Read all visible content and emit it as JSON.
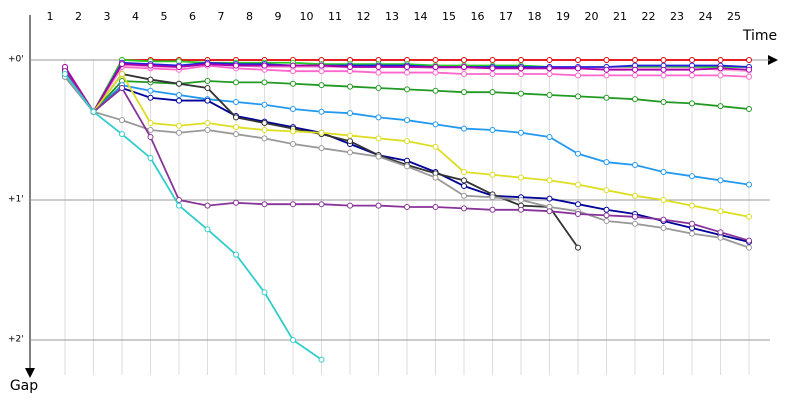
{
  "chart_data": {
    "type": "line",
    "x_label": "Time",
    "y_label": "Gap",
    "categories": [
      "1",
      "2",
      "3",
      "4",
      "5",
      "6",
      "7",
      "8",
      "9",
      "10",
      "11",
      "12",
      "13",
      "14",
      "15",
      "16",
      "17",
      "18",
      "19",
      "20",
      "21",
      "22",
      "23",
      "24",
      "25"
    ],
    "ylim": [
      -0.214,
      2.357
    ],
    "yticks": [
      {
        "value": 0,
        "label": "+0'"
      },
      {
        "value": 1,
        "label": "+1'"
      },
      {
        "value": 2,
        "label": "+2'"
      }
    ],
    "grid": true,
    "series": [
      {
        "color": "#e00000",
        "values": [
          0.05,
          0.37,
          0.0,
          0.0,
          0.0,
          0.0,
          0.0,
          0.0,
          0.0,
          0.0,
          0.0,
          0.0,
          0.0,
          0.0,
          0.0,
          0.0,
          0.0,
          0.0,
          0.0,
          0.0,
          0.0,
          0.0,
          0.0,
          0.0,
          0.0
        ]
      },
      {
        "color": "#22cc22",
        "values": [
          0.08,
          0.37,
          0.0,
          0.01,
          0.01,
          0.02,
          0.02,
          0.02,
          0.02,
          0.03,
          0.03,
          0.03,
          0.03,
          0.04,
          0.04,
          0.04,
          0.04,
          0.05,
          0.06,
          0.05,
          0.05,
          0.05,
          0.05,
          0.05,
          0.05
        ]
      },
      {
        "color": "#ff66cc",
        "values": [
          0.06,
          0.37,
          0.05,
          0.06,
          0.07,
          0.04,
          0.06,
          0.07,
          0.08,
          0.08,
          0.08,
          0.09,
          0.09,
          0.09,
          0.1,
          0.1,
          0.1,
          0.1,
          0.11,
          0.11,
          0.11,
          0.11,
          0.11,
          0.11,
          0.12
        ]
      },
      {
        "color": "#ffaadd",
        "values": [
          0.05,
          0.37,
          0.04,
          0.05,
          0.05,
          0.03,
          0.04,
          0.05,
          0.05,
          0.05,
          0.05,
          0.05,
          0.05,
          0.06,
          0.06,
          0.06,
          0.06,
          0.06,
          0.06,
          0.06,
          0.06,
          0.06,
          0.06,
          0.07,
          0.08
        ]
      },
      {
        "color": "#2222dd",
        "values": [
          0.07,
          0.37,
          0.02,
          0.03,
          0.04,
          0.02,
          0.03,
          0.03,
          0.04,
          0.04,
          0.04,
          0.04,
          0.04,
          0.05,
          0.05,
          0.05,
          0.05,
          0.05,
          0.05,
          0.05,
          0.04,
          0.04,
          0.04,
          0.04,
          0.05
        ]
      },
      {
        "color": "#aa00aa",
        "values": [
          0.05,
          0.37,
          0.03,
          0.04,
          0.05,
          0.03,
          0.04,
          0.04,
          0.04,
          0.04,
          0.05,
          0.05,
          0.05,
          0.05,
          0.05,
          0.06,
          0.06,
          0.06,
          0.06,
          0.07,
          0.07,
          0.07,
          0.07,
          0.06,
          0.07
        ]
      },
      {
        "color": "#229922",
        "values": [
          0.1,
          0.37,
          0.15,
          0.16,
          0.17,
          0.15,
          0.16,
          0.16,
          0.17,
          0.18,
          0.19,
          0.2,
          0.21,
          0.22,
          0.23,
          0.23,
          0.24,
          0.25,
          0.26,
          0.27,
          0.28,
          0.3,
          0.31,
          0.33,
          0.35
        ]
      },
      {
        "color": "#2299ee",
        "values": [
          0.1,
          0.37,
          0.18,
          0.22,
          0.25,
          0.28,
          0.3,
          0.32,
          0.35,
          0.37,
          0.38,
          0.41,
          0.43,
          0.46,
          0.49,
          0.5,
          0.52,
          0.55,
          0.67,
          0.73,
          0.75,
          0.8,
          0.83,
          0.86,
          0.89
        ]
      },
      {
        "color": "#000099",
        "values": [
          0.12,
          0.37,
          0.2,
          0.27,
          0.29,
          0.29,
          0.4,
          0.44,
          0.48,
          0.52,
          0.6,
          0.68,
          0.72,
          0.8,
          0.9,
          0.97,
          0.98,
          0.99,
          1.03,
          1.07,
          1.1,
          1.15,
          1.2,
          1.25,
          1.3
        ]
      },
      {
        "color": "#333333",
        "values": [
          0.11,
          0.37,
          0.1,
          0.14,
          0.17,
          0.2,
          0.41,
          0.45,
          0.49,
          0.53,
          0.58,
          0.68,
          0.75,
          0.81,
          0.86,
          0.96,
          1.04,
          1.05,
          1.34,
          null,
          null,
          null,
          null,
          null,
          null
        ]
      },
      {
        "color": "#dddd22",
        "values": [
          0.1,
          0.37,
          0.1,
          0.45,
          0.47,
          0.45,
          0.48,
          0.5,
          0.51,
          0.52,
          0.54,
          0.56,
          0.58,
          0.62,
          0.8,
          0.82,
          0.84,
          0.86,
          0.89,
          0.93,
          0.97,
          1.0,
          1.04,
          1.08,
          1.12
        ]
      },
      {
        "color": "#999999",
        "values": [
          0.12,
          0.37,
          0.43,
          0.5,
          0.52,
          0.5,
          0.53,
          0.56,
          0.6,
          0.63,
          0.66,
          0.69,
          0.76,
          0.84,
          0.97,
          0.98,
          1.0,
          1.05,
          1.08,
          1.15,
          1.17,
          1.2,
          1.24,
          1.27,
          1.34
        ]
      },
      {
        "color": "#883399",
        "values": [
          0.08,
          0.37,
          0.2,
          0.55,
          1.0,
          1.04,
          1.02,
          1.03,
          1.03,
          1.03,
          1.04,
          1.04,
          1.05,
          1.05,
          1.06,
          1.07,
          1.07,
          1.08,
          1.1,
          1.11,
          1.12,
          1.14,
          1.17,
          1.23,
          1.29
        ]
      },
      {
        "color": "#33cccc",
        "values": [
          0.1,
          0.37,
          0.53,
          0.7,
          1.04,
          1.21,
          1.39,
          1.66,
          2.0,
          2.14,
          null,
          null,
          null,
          null,
          null,
          null,
          null,
          null,
          null,
          null,
          null,
          null,
          null,
          null,
          null
        ]
      }
    ]
  }
}
